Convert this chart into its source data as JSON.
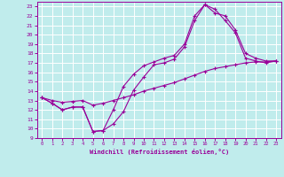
{
  "xlabel": "Windchill (Refroidissement éolien,°C)",
  "bg_color": "#c0ecec",
  "grid_color": "#ffffff",
  "line_color": "#990099",
  "marker": "+",
  "xlim": [
    -0.5,
    23.5
  ],
  "ylim": [
    9,
    23.5
  ],
  "xticks": [
    0,
    1,
    2,
    3,
    4,
    5,
    6,
    7,
    8,
    9,
    10,
    11,
    12,
    13,
    14,
    15,
    16,
    17,
    18,
    19,
    20,
    21,
    22,
    23
  ],
  "yticks": [
    9,
    10,
    11,
    12,
    13,
    14,
    15,
    16,
    17,
    18,
    19,
    20,
    21,
    22,
    23
  ],
  "line1_x": [
    0,
    1,
    2,
    3,
    4,
    5,
    6,
    7,
    8,
    9,
    10,
    11,
    12,
    13,
    14,
    15,
    16,
    17,
    18,
    19,
    20,
    21,
    22,
    23
  ],
  "line1_y": [
    13.3,
    12.7,
    12.0,
    12.3,
    12.3,
    9.7,
    9.8,
    10.5,
    11.8,
    14.1,
    15.5,
    16.8,
    17.0,
    17.4,
    18.7,
    21.5,
    23.2,
    22.7,
    21.5,
    20.2,
    17.5,
    17.2,
    17.0,
    17.2
  ],
  "line2_x": [
    0,
    1,
    2,
    3,
    4,
    5,
    6,
    7,
    8,
    9,
    10,
    11,
    12,
    13,
    14,
    15,
    16,
    17,
    18,
    19,
    20,
    21,
    22,
    23
  ],
  "line2_y": [
    13.3,
    12.7,
    12.0,
    12.3,
    12.3,
    9.7,
    9.8,
    12.0,
    14.5,
    15.8,
    16.7,
    17.1,
    17.5,
    17.8,
    19.0,
    22.0,
    23.2,
    22.3,
    22.0,
    20.5,
    18.0,
    17.5,
    17.2,
    17.2
  ],
  "line3_x": [
    0,
    1,
    2,
    3,
    4,
    5,
    6,
    7,
    8,
    9,
    10,
    11,
    12,
    13,
    14,
    15,
    16,
    17,
    18,
    19,
    20,
    21,
    22,
    23
  ],
  "line3_y": [
    13.3,
    13.0,
    12.8,
    12.9,
    13.0,
    12.5,
    12.7,
    13.0,
    13.3,
    13.6,
    14.0,
    14.3,
    14.6,
    14.9,
    15.3,
    15.7,
    16.1,
    16.4,
    16.6,
    16.8,
    17.0,
    17.1,
    17.1,
    17.2
  ]
}
